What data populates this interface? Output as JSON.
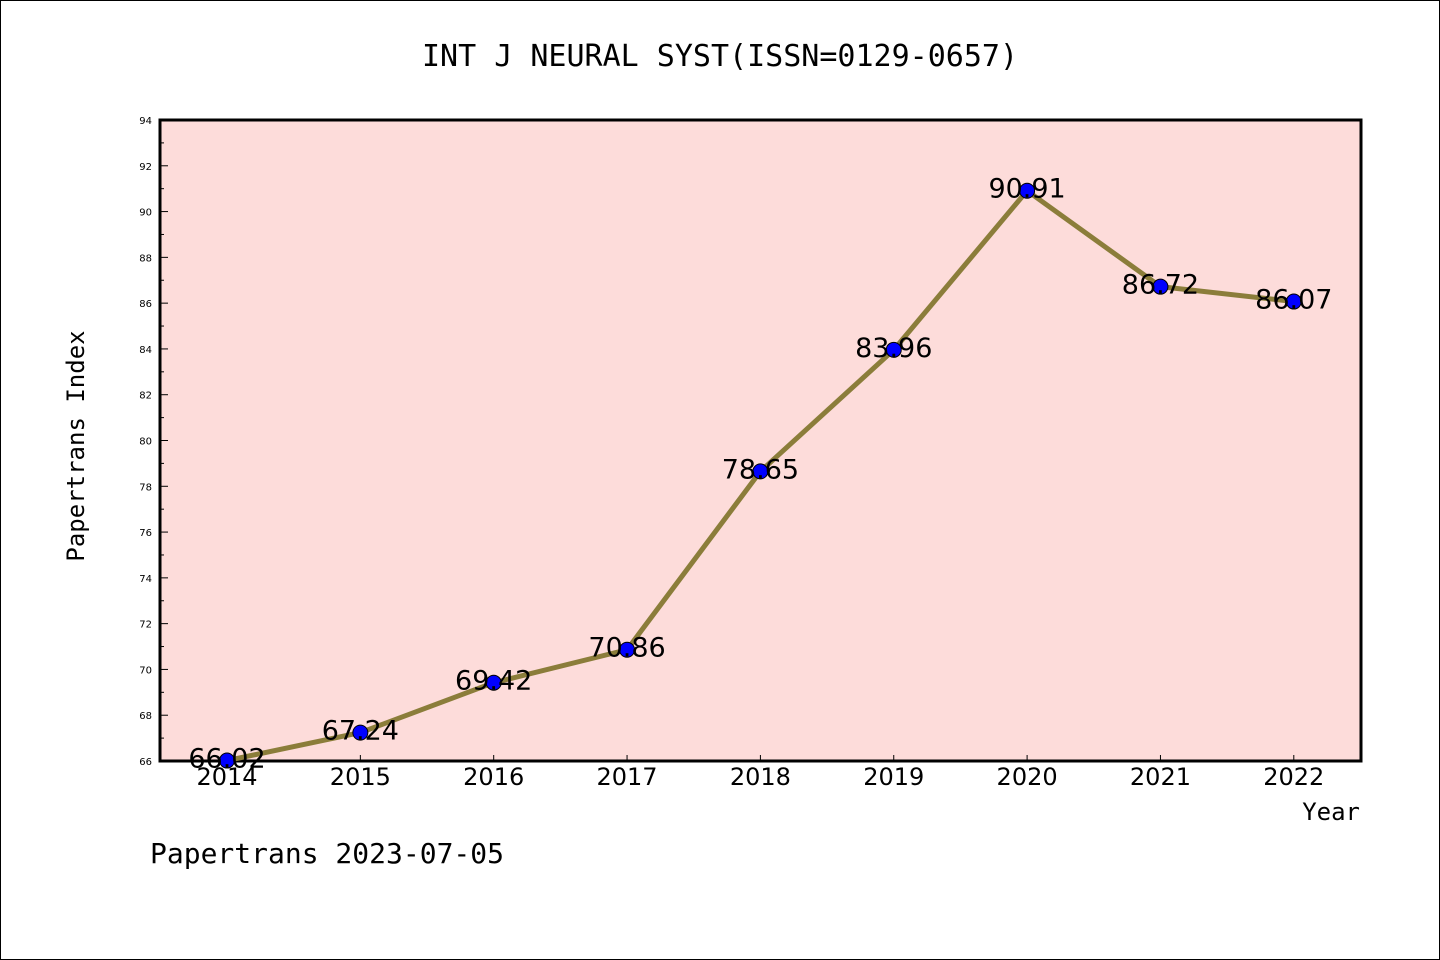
{
  "chart_data": {
    "type": "line",
    "title": "INT J NEURAL SYST(ISSN=0129-0657)",
    "xlabel": "Year",
    "ylabel": "Papertrans Index",
    "categories": [
      "2014",
      "2015",
      "2016",
      "2017",
      "2018",
      "2019",
      "2020",
      "2021",
      "2022"
    ],
    "series": [
      {
        "values": [
          66.02,
          67.24,
          69.42,
          70.86,
          78.65,
          83.96,
          90.91,
          86.72,
          86.07
        ],
        "data_labels": [
          "66.02",
          "67.24",
          "69.42",
          "70.86",
          "78.65",
          "83.96",
          "90.91",
          "86.72",
          "86.07"
        ]
      }
    ],
    "ylim": [
      66,
      94
    ],
    "yticks": [
      "66",
      "68",
      "70",
      "72",
      "74",
      "76",
      "78",
      "80",
      "82",
      "84",
      "86",
      "88",
      "90",
      "92",
      "94"
    ],
    "grid": false,
    "legend": "none",
    "colors": {
      "plot_background": "#fddcda",
      "line": "#8b7d3a",
      "marker": "#0000ff"
    }
  },
  "footer": "Papertrans 2023-07-05"
}
